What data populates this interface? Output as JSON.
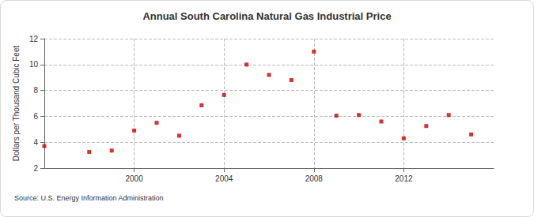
{
  "chart_data": {
    "type": "scatter",
    "title": "Annual South Carolina Natural Gas Industrial Price",
    "y_label": "Dollars per Thousand Cubic Feet",
    "source": "Source: U.S. Energy Information Administration",
    "x": [
      1996,
      1998,
      1999,
      2000,
      2001,
      2002,
      2003,
      2004,
      2005,
      2006,
      2007,
      2008,
      2009,
      2010,
      2011,
      2012,
      2013,
      2014,
      2015
    ],
    "values": [
      3.7,
      3.25,
      3.35,
      4.9,
      5.5,
      4.5,
      6.85,
      7.65,
      10.0,
      9.2,
      8.8,
      11.0,
      6.05,
      6.1,
      5.6,
      4.3,
      5.25,
      6.1,
      4.6
    ],
    "color": "#cc0000",
    "marker": "square",
    "xlim": [
      1996,
      2016
    ],
    "xticks": [
      2000,
      2004,
      2008,
      2012
    ],
    "ylim": [
      2,
      12
    ],
    "yticks": [
      2,
      4,
      6,
      8,
      10,
      12
    ],
    "grid": true
  }
}
